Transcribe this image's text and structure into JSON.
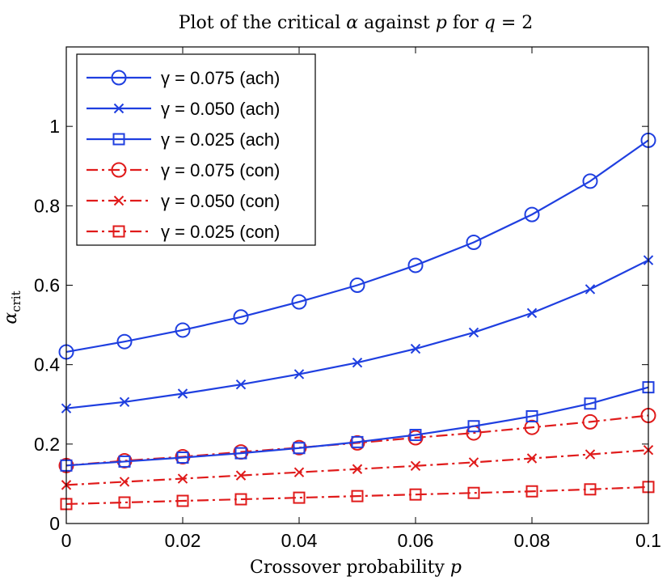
{
  "chart_data": {
    "type": "line",
    "title_prefix": "Plot of the critical",
    "title_alpha": "α",
    "title_middle": "against",
    "title_p": "p",
    "title_for": "for",
    "title_q": "q",
    "title_eq": "= 2",
    "xlabel_text": "Crossover probability",
    "xlabel_var": "p",
    "ylabel_var": "α",
    "ylabel_sub": "crit",
    "xlim": [
      0,
      0.1
    ],
    "ylim": [
      0,
      1.2
    ],
    "x_ticks": [
      0,
      0.02,
      0.04,
      0.06,
      0.08,
      0.1
    ],
    "x_tick_labels": [
      "0",
      "0.02",
      "0.04",
      "0.06",
      "0.08",
      "0.1"
    ],
    "y_ticks": [
      0,
      0.2,
      0.4,
      0.6,
      0.8,
      1
    ],
    "y_tick_labels": [
      "0",
      "0.2",
      "0.4",
      "0.6",
      "0.8",
      "1"
    ],
    "grid": false,
    "legend_position": "top-left",
    "x": [
      0,
      0.01,
      0.02,
      0.03,
      0.04,
      0.05,
      0.06,
      0.07,
      0.08,
      0.09,
      0.1
    ],
    "series": [
      {
        "name": "γ = 0.075 (ach)",
        "color": "#1f3fe0",
        "dash": "solid",
        "marker": "circle",
        "values": [
          0.432,
          0.458,
          0.487,
          0.52,
          0.558,
          0.6,
          0.65,
          0.708,
          0.778,
          0.862,
          0.965
        ]
      },
      {
        "name": "γ = 0.050 (ach)",
        "color": "#1f3fe0",
        "dash": "solid",
        "marker": "x",
        "values": [
          0.29,
          0.306,
          0.327,
          0.35,
          0.376,
          0.405,
          0.44,
          0.481,
          0.53,
          0.59,
          0.663
        ]
      },
      {
        "name": "γ = 0.025 (ach)",
        "color": "#1f3fe0",
        "dash": "solid",
        "marker": "square",
        "values": [
          0.146,
          0.156,
          0.166,
          0.177,
          0.19,
          0.205,
          0.223,
          0.245,
          0.27,
          0.302,
          0.343
        ]
      },
      {
        "name": "γ = 0.075 (con)",
        "color": "#e01b1b",
        "dash": "dashdot",
        "marker": "circle",
        "values": [
          0.146,
          0.158,
          0.168,
          0.18,
          0.191,
          0.203,
          0.216,
          0.228,
          0.242,
          0.256,
          0.272
        ]
      },
      {
        "name": "γ = 0.050 (con)",
        "color": "#e01b1b",
        "dash": "dashdot",
        "marker": "x",
        "values": [
          0.097,
          0.105,
          0.113,
          0.121,
          0.129,
          0.137,
          0.145,
          0.154,
          0.164,
          0.174,
          0.185
        ]
      },
      {
        "name": "γ = 0.025 (con)",
        "color": "#e01b1b",
        "dash": "dashdot",
        "marker": "square",
        "values": [
          0.049,
          0.053,
          0.057,
          0.061,
          0.065,
          0.069,
          0.073,
          0.077,
          0.081,
          0.086,
          0.092
        ]
      }
    ]
  }
}
